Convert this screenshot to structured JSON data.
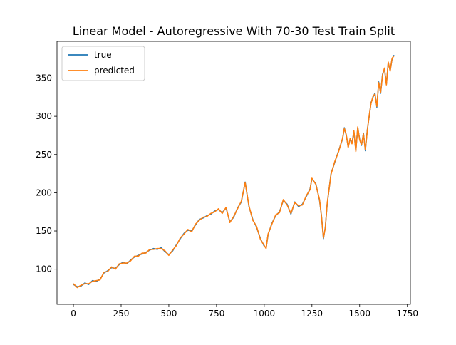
{
  "chart_data": {
    "type": "line",
    "title": "Linear Model - Autoregressive With 70-30 Test Train Split",
    "xlabel": "",
    "ylabel": "",
    "xlim": [
      -86,
      1766
    ],
    "ylim": [
      54,
      398
    ],
    "xticks": [
      0,
      250,
      500,
      750,
      1000,
      1250,
      1500,
      1750
    ],
    "yticks": [
      100,
      150,
      200,
      250,
      300,
      350
    ],
    "grid": false,
    "legend": "top-left",
    "x": [
      0,
      20,
      40,
      60,
      80,
      100,
      120,
      140,
      160,
      180,
      200,
      220,
      240,
      260,
      280,
      300,
      320,
      340,
      360,
      380,
      400,
      420,
      440,
      460,
      480,
      500,
      520,
      540,
      560,
      580,
      600,
      620,
      640,
      660,
      680,
      700,
      720,
      740,
      760,
      780,
      800,
      820,
      840,
      860,
      880,
      900,
      920,
      940,
      960,
      980,
      1000,
      1010,
      1020,
      1040,
      1060,
      1080,
      1100,
      1120,
      1140,
      1160,
      1180,
      1200,
      1220,
      1240,
      1250,
      1270,
      1290,
      1300,
      1310,
      1320,
      1330,
      1350,
      1370,
      1390,
      1410,
      1420,
      1430,
      1440,
      1450,
      1460,
      1470,
      1480,
      1490,
      1500,
      1510,
      1520,
      1530,
      1540,
      1550,
      1560,
      1570,
      1580,
      1590,
      1600,
      1610,
      1620,
      1630,
      1640,
      1650,
      1660,
      1670,
      1680
    ],
    "series": [
      {
        "name": "true",
        "color": "#1f77b4",
        "values": [
          80,
          77,
          78,
          82,
          80,
          85,
          84,
          87,
          95,
          98,
          102,
          101,
          106,
          109,
          107,
          112,
          116,
          118,
          120,
          122,
          125,
          127,
          126,
          128,
          123,
          119,
          124,
          132,
          140,
          147,
          151,
          150,
          158,
          165,
          167,
          170,
          172,
          176,
          178,
          174,
          180,
          162,
          168,
          180,
          188,
          214,
          182,
          165,
          155,
          140,
          130,
          128,
          145,
          160,
          170,
          175,
          190,
          185,
          172,
          188,
          182,
          185,
          195,
          205,
          218,
          212,
          190,
          170,
          140,
          155,
          185,
          225,
          240,
          255,
          270,
          285,
          275,
          260,
          270,
          265,
          280,
          255,
          285,
          270,
          262,
          278,
          255,
          282,
          300,
          318,
          325,
          330,
          312,
          345,
          330,
          355,
          362,
          342,
          370,
          360,
          375,
          380
        ]
      },
      {
        "name": "predicted",
        "color": "#ff7f0e",
        "values": [
          81,
          76,
          79,
          81,
          81,
          84,
          85,
          86,
          96,
          97,
          103,
          100,
          107,
          108,
          108,
          111,
          117,
          117,
          121,
          121,
          126,
          126,
          127,
          127,
          124,
          118,
          125,
          131,
          141,
          146,
          152,
          149,
          159,
          164,
          168,
          169,
          173,
          175,
          179,
          173,
          181,
          161,
          169,
          179,
          189,
          213,
          183,
          164,
          156,
          139,
          131,
          127,
          146,
          159,
          171,
          174,
          191,
          184,
          173,
          187,
          183,
          184,
          196,
          204,
          219,
          211,
          191,
          169,
          141,
          154,
          186,
          224,
          241,
          254,
          271,
          284,
          276,
          259,
          271,
          264,
          281,
          254,
          286,
          269,
          263,
          277,
          256,
          281,
          301,
          317,
          326,
          329,
          313,
          344,
          331,
          354,
          363,
          341,
          371,
          359,
          376,
          379
        ]
      }
    ]
  }
}
